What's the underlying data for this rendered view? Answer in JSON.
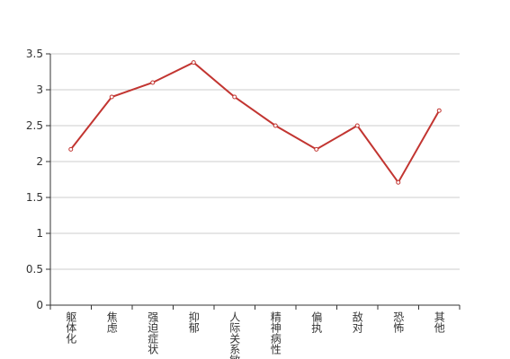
{
  "chart_data": {
    "type": "line",
    "categories": [
      "躯体化",
      "焦虑",
      "强迫症状",
      "抑郁",
      "人际关系敏感",
      "精神病性",
      "偏执",
      "敌对",
      "恐怖",
      "其他"
    ],
    "values": [
      2.17,
      2.9,
      3.1,
      3.38,
      2.9,
      2.5,
      2.17,
      2.5,
      1.71,
      2.71
    ],
    "color": "#c23531",
    "ylim": [
      0,
      3.5
    ],
    "yticks": [
      0,
      0.5,
      1,
      1.5,
      2,
      2.5,
      3,
      3.5
    ],
    "grid": true
  }
}
